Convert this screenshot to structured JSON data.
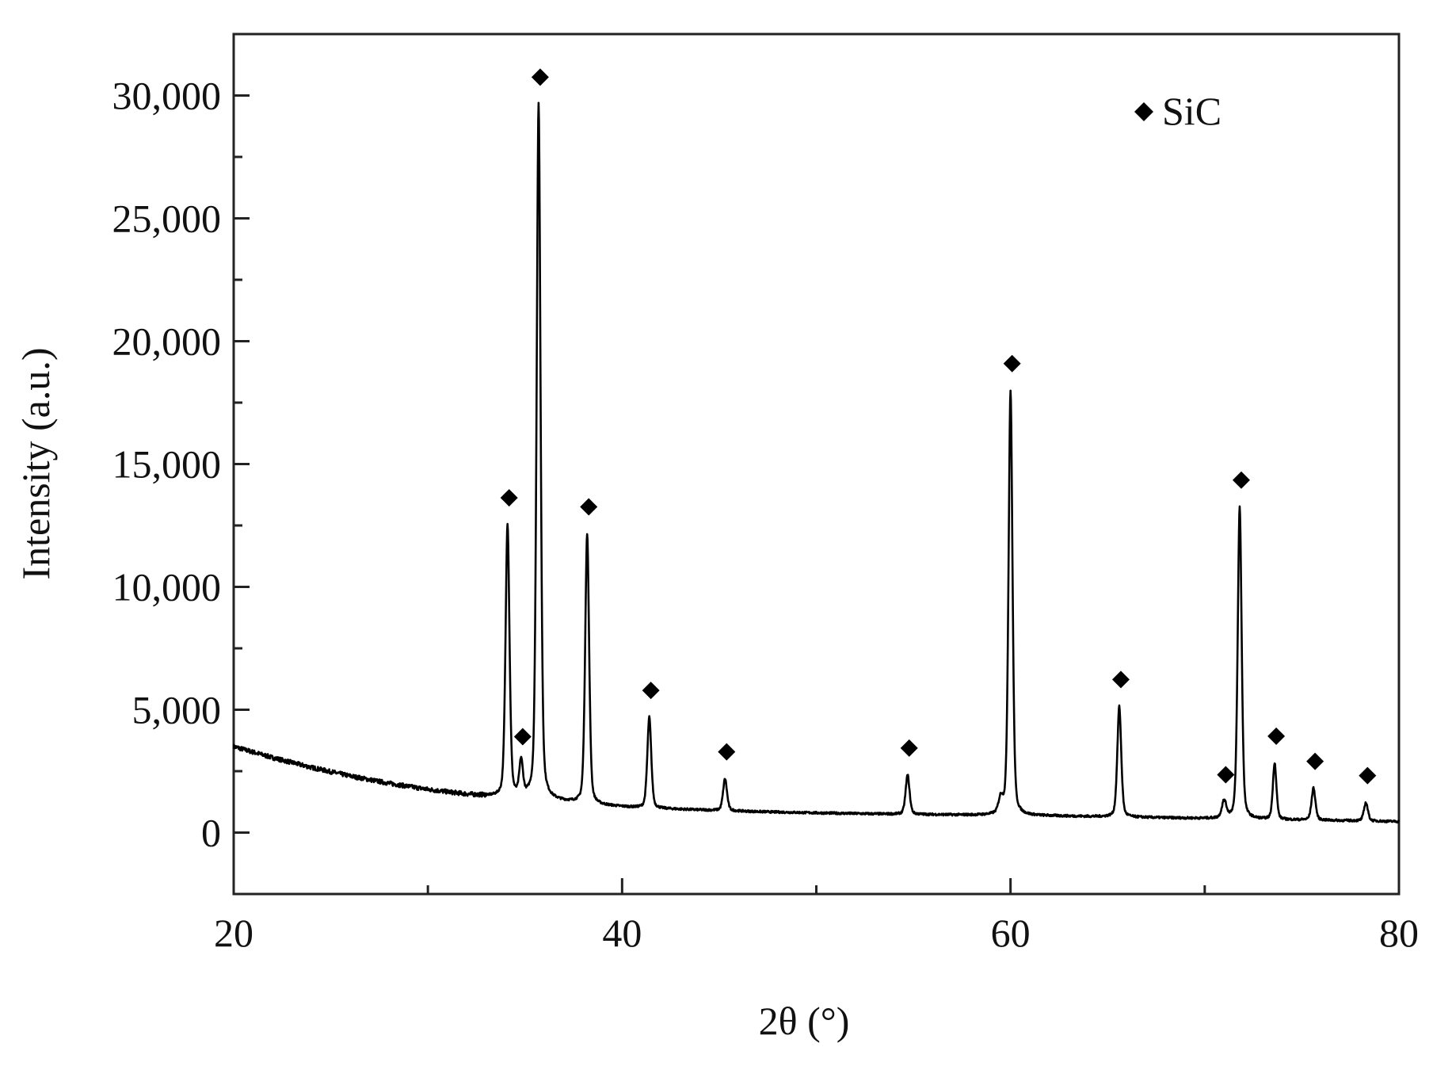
{
  "chart_data": {
    "type": "line",
    "title": "",
    "xlabel": "2θ (°)",
    "ylabel": "Intensity (a.u.)",
    "xlim": [
      20,
      80
    ],
    "ylim": [
      -2500,
      32500
    ],
    "x_ticks": [
      20,
      40,
      60,
      80
    ],
    "x_minor_ticks": [
      30,
      50,
      70
    ],
    "y_ticks": [
      0,
      5000,
      10000,
      15000,
      20000,
      25000,
      30000
    ],
    "x_tick_labels": [
      "20",
      "40",
      "60",
      "80"
    ],
    "y_tick_labels": [
      "0",
      "5,000",
      "10,000",
      "15,000",
      "20,000",
      "25,000",
      "30,000"
    ],
    "grid": false,
    "legend": {
      "position": "top-right",
      "marker": "diamond",
      "label": "SiC"
    },
    "color": "#000000",
    "baseline": [
      [
        20,
        3500
      ],
      [
        22,
        3050
      ],
      [
        24,
        2650
      ],
      [
        26,
        2300
      ],
      [
        28,
        2000
      ],
      [
        30,
        1750
      ],
      [
        32,
        1550
      ],
      [
        33.5,
        1450
      ],
      [
        35,
        1400
      ],
      [
        37,
        1250
      ],
      [
        39,
        1100
      ],
      [
        41,
        1000
      ],
      [
        44,
        920
      ],
      [
        47,
        850
      ],
      [
        50,
        800
      ],
      [
        53,
        760
      ],
      [
        56,
        730
      ],
      [
        59,
        700
      ],
      [
        62,
        680
      ],
      [
        65,
        640
      ],
      [
        68,
        600
      ],
      [
        71,
        560
      ],
      [
        74,
        520
      ],
      [
        77,
        490
      ],
      [
        80,
        450
      ]
    ],
    "peaks": [
      {
        "x": 34.1,
        "height": 11100,
        "width": 0.22,
        "marker": true
      },
      {
        "x": 34.8,
        "height": 1400,
        "width": 0.2,
        "marker": true
      },
      {
        "x": 35.7,
        "height": 28300,
        "width": 0.22,
        "marker": true
      },
      {
        "x": 38.2,
        "height": 11000,
        "width": 0.22,
        "marker": true
      },
      {
        "x": 41.4,
        "height": 3700,
        "width": 0.22,
        "marker": true
      },
      {
        "x": 45.3,
        "height": 1300,
        "width": 0.22,
        "marker": true
      },
      {
        "x": 54.7,
        "height": 1600,
        "width": 0.22,
        "marker": true
      },
      {
        "x": 59.5,
        "height": 600,
        "width": 0.25,
        "marker": false
      },
      {
        "x": 60.0,
        "height": 17300,
        "width": 0.22,
        "marker": true
      },
      {
        "x": 65.6,
        "height": 4500,
        "width": 0.22,
        "marker": true
      },
      {
        "x": 71.0,
        "height": 700,
        "width": 0.25,
        "marker": true
      },
      {
        "x": 71.8,
        "height": 12700,
        "width": 0.22,
        "marker": true
      },
      {
        "x": 73.6,
        "height": 2300,
        "width": 0.2,
        "marker": true
      },
      {
        "x": 75.6,
        "height": 1300,
        "width": 0.22,
        "marker": true
      },
      {
        "x": 78.3,
        "height": 750,
        "width": 0.22,
        "marker": true
      }
    ]
  }
}
